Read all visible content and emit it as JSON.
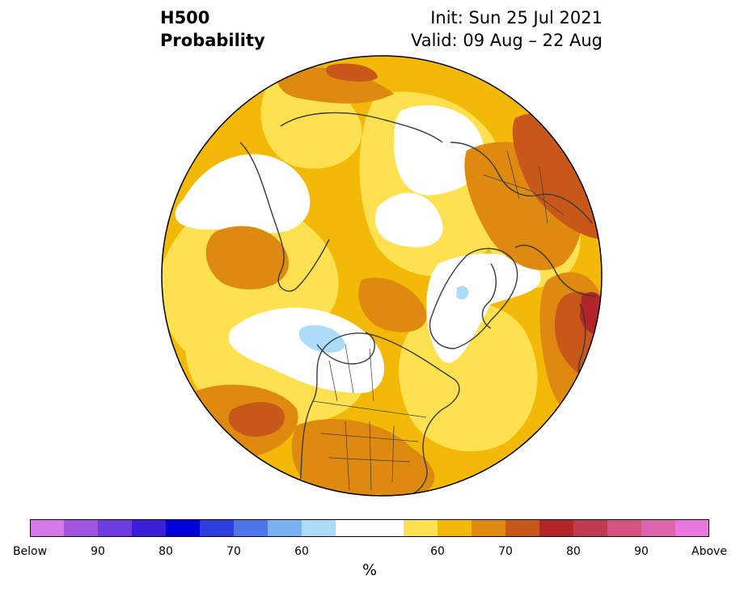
{
  "header": {
    "variable": "H500",
    "product": "Probability",
    "init": "Init: Sun 25 Jul 2021",
    "valid": "Valid: 09 Aug – 22 Aug"
  },
  "map": {
    "projection": "north-polar-stereographic",
    "region": "Northern Hemisphere",
    "features": [
      "coastlines",
      "country-borders",
      "state-borders"
    ]
  },
  "colorbar": {
    "unit": "%",
    "tick_labels": [
      "Below",
      "90",
      "80",
      "70",
      "60",
      "60",
      "70",
      "80",
      "90",
      "Above"
    ],
    "below_colors": [
      "#d678e8",
      "#a055e0",
      "#6e3ce0",
      "#3a1fd8",
      "#0000d8",
      "#2a3ede",
      "#4e76e8",
      "#78b2f0",
      "#acdcfa"
    ],
    "neutral_color": "#ffffff",
    "above_colors": [
      "#fde150",
      "#f2b908",
      "#de8a10",
      "#c8581a",
      "#b2262a",
      "#c03a52",
      "#d45282",
      "#dc64ac",
      "#e878e0"
    ]
  }
}
